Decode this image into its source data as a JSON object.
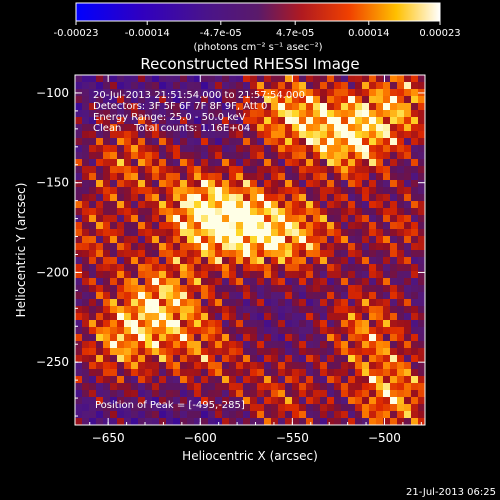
{
  "chart_data": {
    "type": "heatmap",
    "title": "Reconstructed RHESSI Image",
    "xlabel": "Heliocentric X (arcsec)",
    "ylabel": "Heliocentric Y (arcsec)",
    "xlim": [
      -668,
      -478
    ],
    "ylim": [
      -285,
      -90
    ],
    "xticks": [
      -650,
      -600,
      -550,
      -500
    ],
    "yticks": [
      -100,
      -150,
      -200,
      -250
    ],
    "colorbar": {
      "label": "(photons cm⁻² s⁻¹ asec⁻²)",
      "range": [
        -0.00023,
        0.00023
      ],
      "ticks": [
        "-0.00023",
        "-0.00014",
        "-4.7e-05",
        "4.7e-05",
        "0.00014",
        "0.00023"
      ],
      "tick_values": [
        -0.00023,
        -0.00014,
        -4.7e-05,
        4.7e-05,
        0.00014,
        0.00023
      ]
    },
    "annotations": [
      "20-Jul-2013 21:51:54.000 to 21:57:54.000",
      "Detectors: 3F 5F 6F 7F 8F 9F, Att 0",
      "Energy Range: 25.0 - 50.0 keV",
      "Clean    Total counts: 1.16E+04"
    ],
    "peak_label": "Position of Peak = [-495,-285]",
    "peak": [
      -495,
      -285
    ],
    "blobs": [
      {
        "x": -555,
        "y": -110,
        "amp": 0.9
      },
      {
        "x": -520,
        "y": -125,
        "amp": 1.0
      },
      {
        "x": -490,
        "y": -105,
        "amp": 0.8
      },
      {
        "x": -640,
        "y": -135,
        "amp": 0.7
      },
      {
        "x": -600,
        "y": -165,
        "amp": 0.95
      },
      {
        "x": -575,
        "y": -175,
        "amp": 0.9
      },
      {
        "x": -545,
        "y": -180,
        "amp": 0.75
      },
      {
        "x": -620,
        "y": -215,
        "amp": 0.9
      },
      {
        "x": -645,
        "y": -240,
        "amp": 0.8
      },
      {
        "x": -595,
        "y": -245,
        "amp": 0.6
      },
      {
        "x": -510,
        "y": -230,
        "amp": 0.75
      },
      {
        "x": -495,
        "y": -270,
        "amp": 0.9
      },
      {
        "x": -555,
        "y": -270,
        "amp": 0.6
      },
      {
        "x": -660,
        "y": -180,
        "amp": 0.6
      },
      {
        "x": -490,
        "y": -175,
        "amp": 0.55
      }
    ]
  },
  "footer": {
    "timestamp": "21-Jul-2013 06:25"
  }
}
